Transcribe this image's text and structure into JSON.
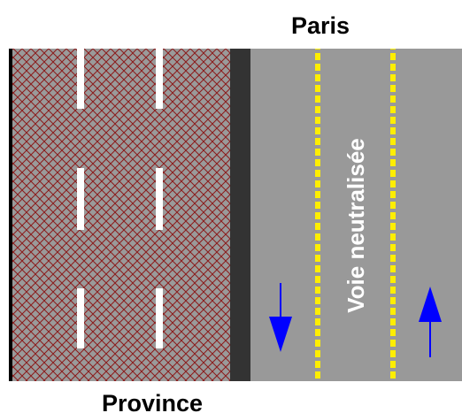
{
  "labels": {
    "top": "Paris",
    "bottom": "Province",
    "neutralized_lane": "Voie neutralisée"
  },
  "colors": {
    "background": "#ffffff",
    "closed_roadway_fill": "#9a9a9a",
    "closed_roadway_hatch": "#8b1a1a",
    "median": "#333333",
    "open_roadway": "#999999",
    "white_lane_markings": "#ffffff",
    "yellow_temporary_markings": "#ffee00",
    "arrows": "#0000ff",
    "edge_line": "#000000"
  },
  "icons": {
    "down_arrow": "arrow-down-icon",
    "up_arrow": "arrow-up-icon"
  }
}
